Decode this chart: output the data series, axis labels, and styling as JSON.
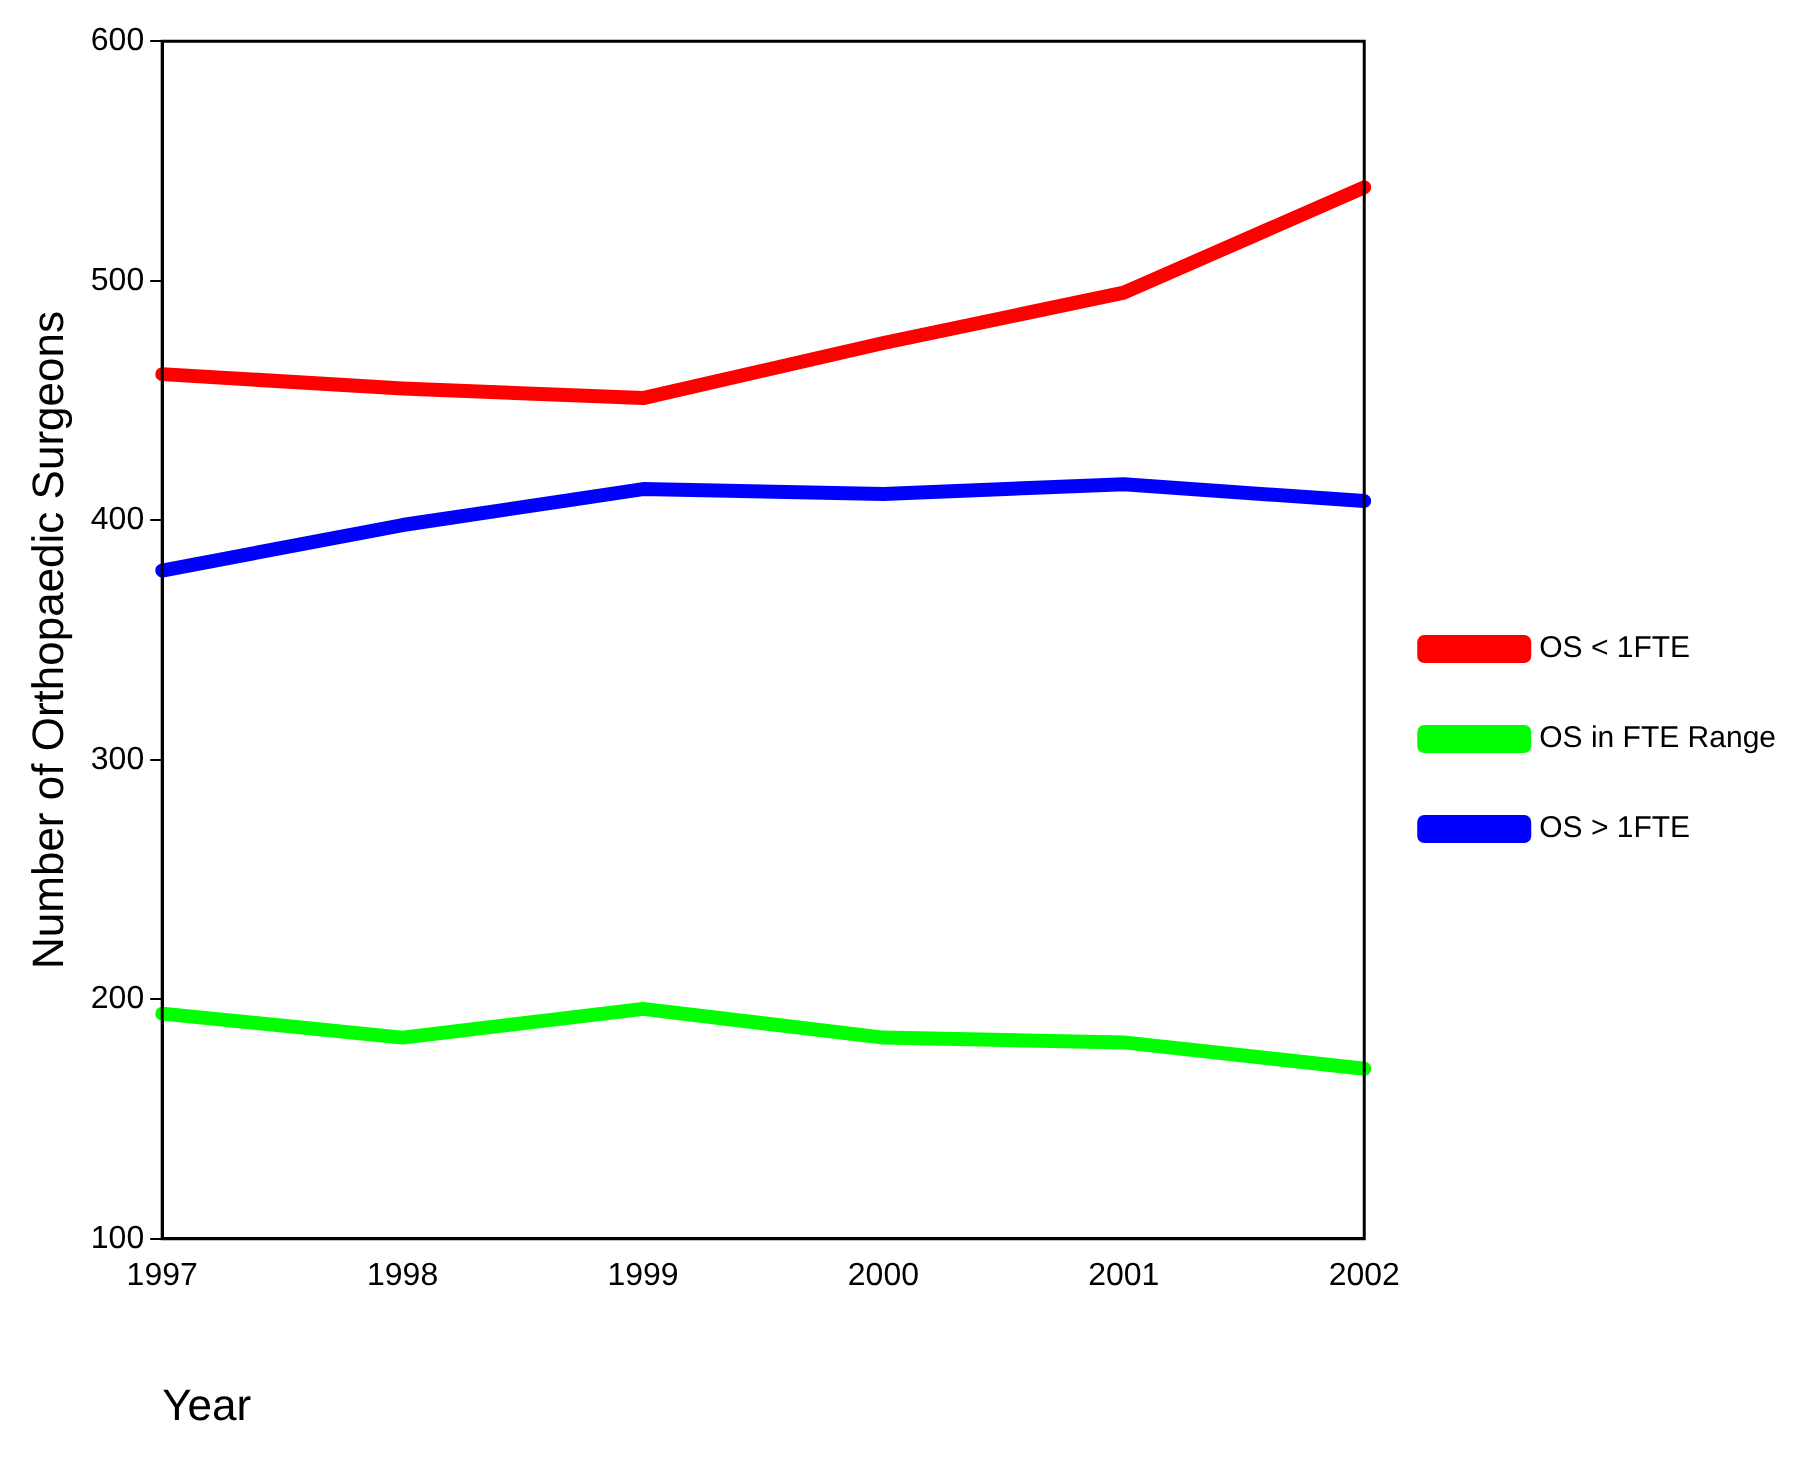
{
  "chart_data": {
    "type": "line",
    "xlabel": "Year",
    "ylabel": "Number of Orthopaedic Surgeons",
    "categories": [
      "1997",
      "1998",
      "1999",
      "2000",
      "2001",
      "2002"
    ],
    "series": [
      {
        "name": "OS < 1FTE",
        "color": "#ff0000",
        "values": [
          461,
          455,
          451,
          474,
          495,
          539
        ]
      },
      {
        "name": "OS in FTE Range",
        "color": "#00ff00",
        "values": [
          194,
          184,
          196,
          184,
          182,
          171
        ]
      },
      {
        "name": "OS > 1FTE",
        "color": "#0000ff",
        "values": [
          379,
          398,
          413,
          411,
          415,
          408
        ]
      }
    ],
    "ylim": [
      100,
      600
    ],
    "yticks": [
      100,
      200,
      300,
      400,
      500,
      600
    ],
    "grid": false,
    "legend": "right",
    "marker": "none",
    "line_style": "solid"
  }
}
